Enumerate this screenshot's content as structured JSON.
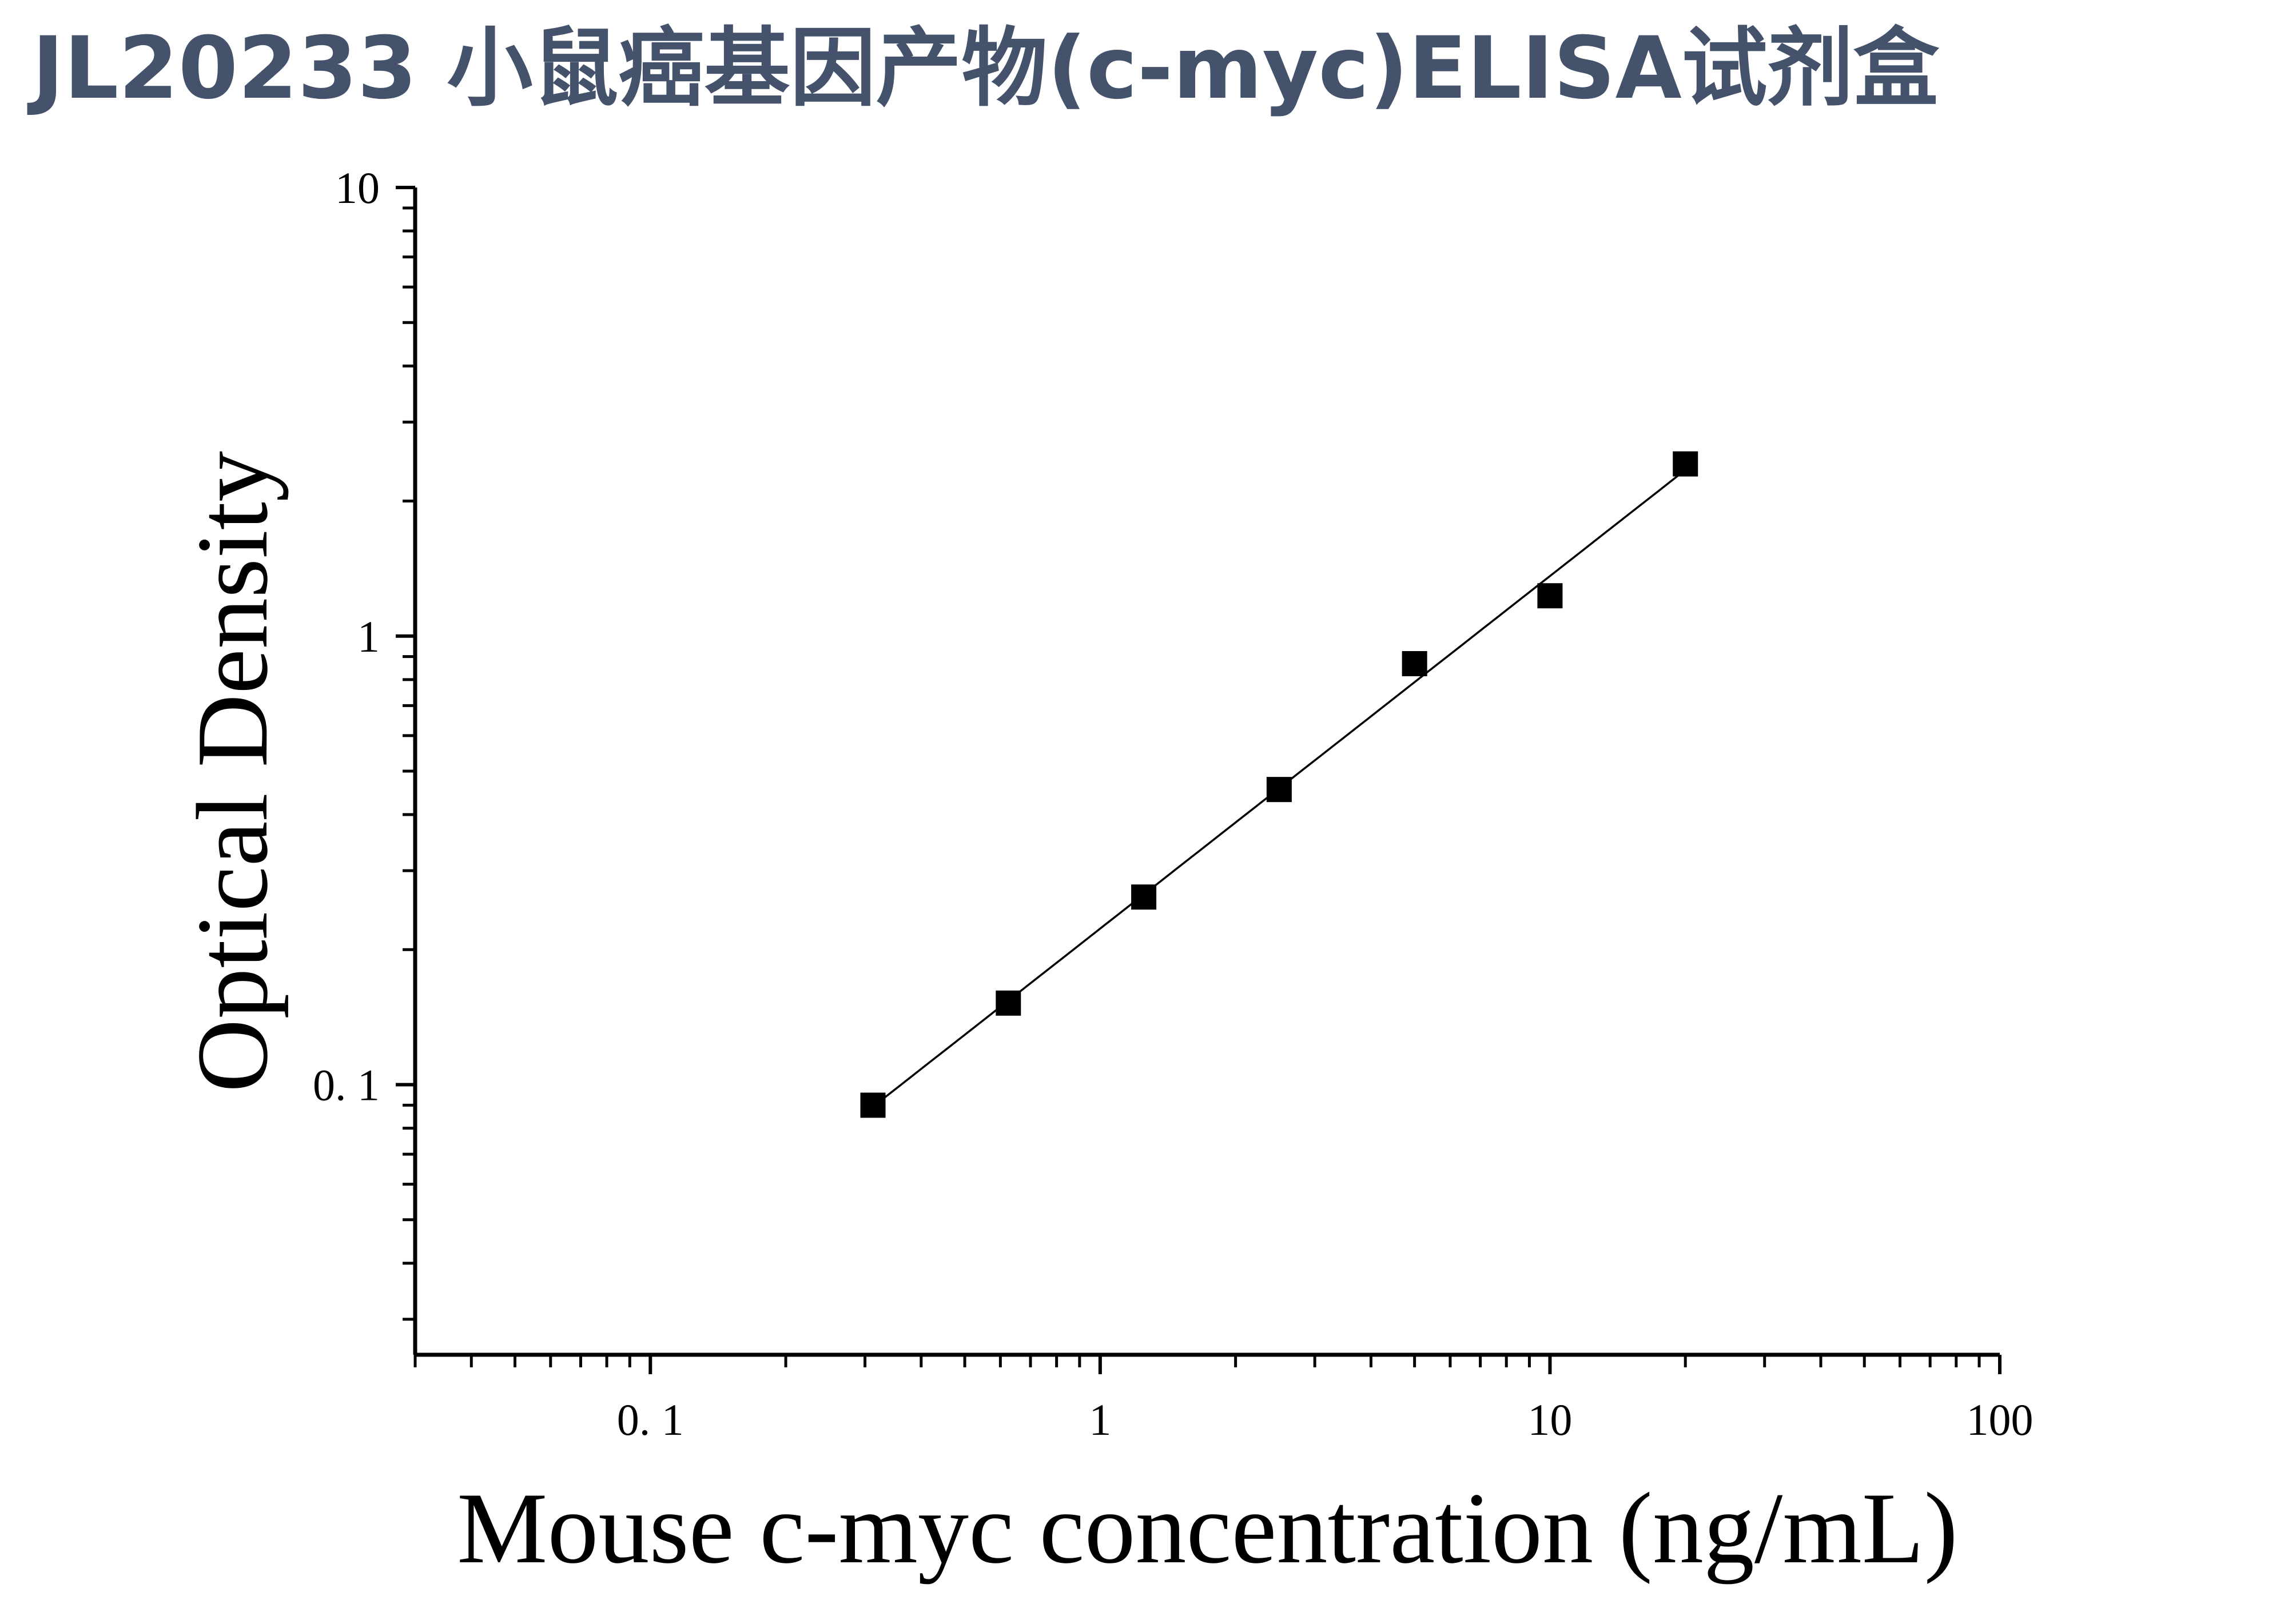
{
  "page": {
    "title": "JL20233 小鼠癌基因产物(c-myc)ELISA试剂盒",
    "title_color": "#44526b"
  },
  "chart_data": {
    "type": "scatter",
    "title": "JL20233 小鼠癌基因产物(c-myc)ELISA试剂盒",
    "xlabel": "Mouse c-myc concentration (ng/mL)",
    "ylabel": "Optical Density",
    "xscale": "log",
    "yscale": "log",
    "xlim": [
      0.03,
      100
    ],
    "ylim": [
      0.025,
      10
    ],
    "x_ticks": [
      {
        "value": 0.1,
        "label": "0. 1"
      },
      {
        "value": 1,
        "label": "1"
      },
      {
        "value": 10,
        "label": "10"
      },
      {
        "value": 100,
        "label": "100"
      }
    ],
    "y_ticks": [
      {
        "value": 0.1,
        "label": "0. 1"
      },
      {
        "value": 1,
        "label": "1"
      },
      {
        "value": 10,
        "label": "10"
      }
    ],
    "grid": false,
    "legend": "none",
    "marker": "square",
    "marker_color": "#000000",
    "fit_line": true,
    "series": [
      {
        "x": [
          0.3125,
          0.625,
          1.25,
          2.5,
          5,
          10,
          20
        ],
        "y": [
          0.09,
          0.152,
          0.262,
          0.455,
          0.868,
          1.23,
          2.42
        ]
      }
    ]
  }
}
